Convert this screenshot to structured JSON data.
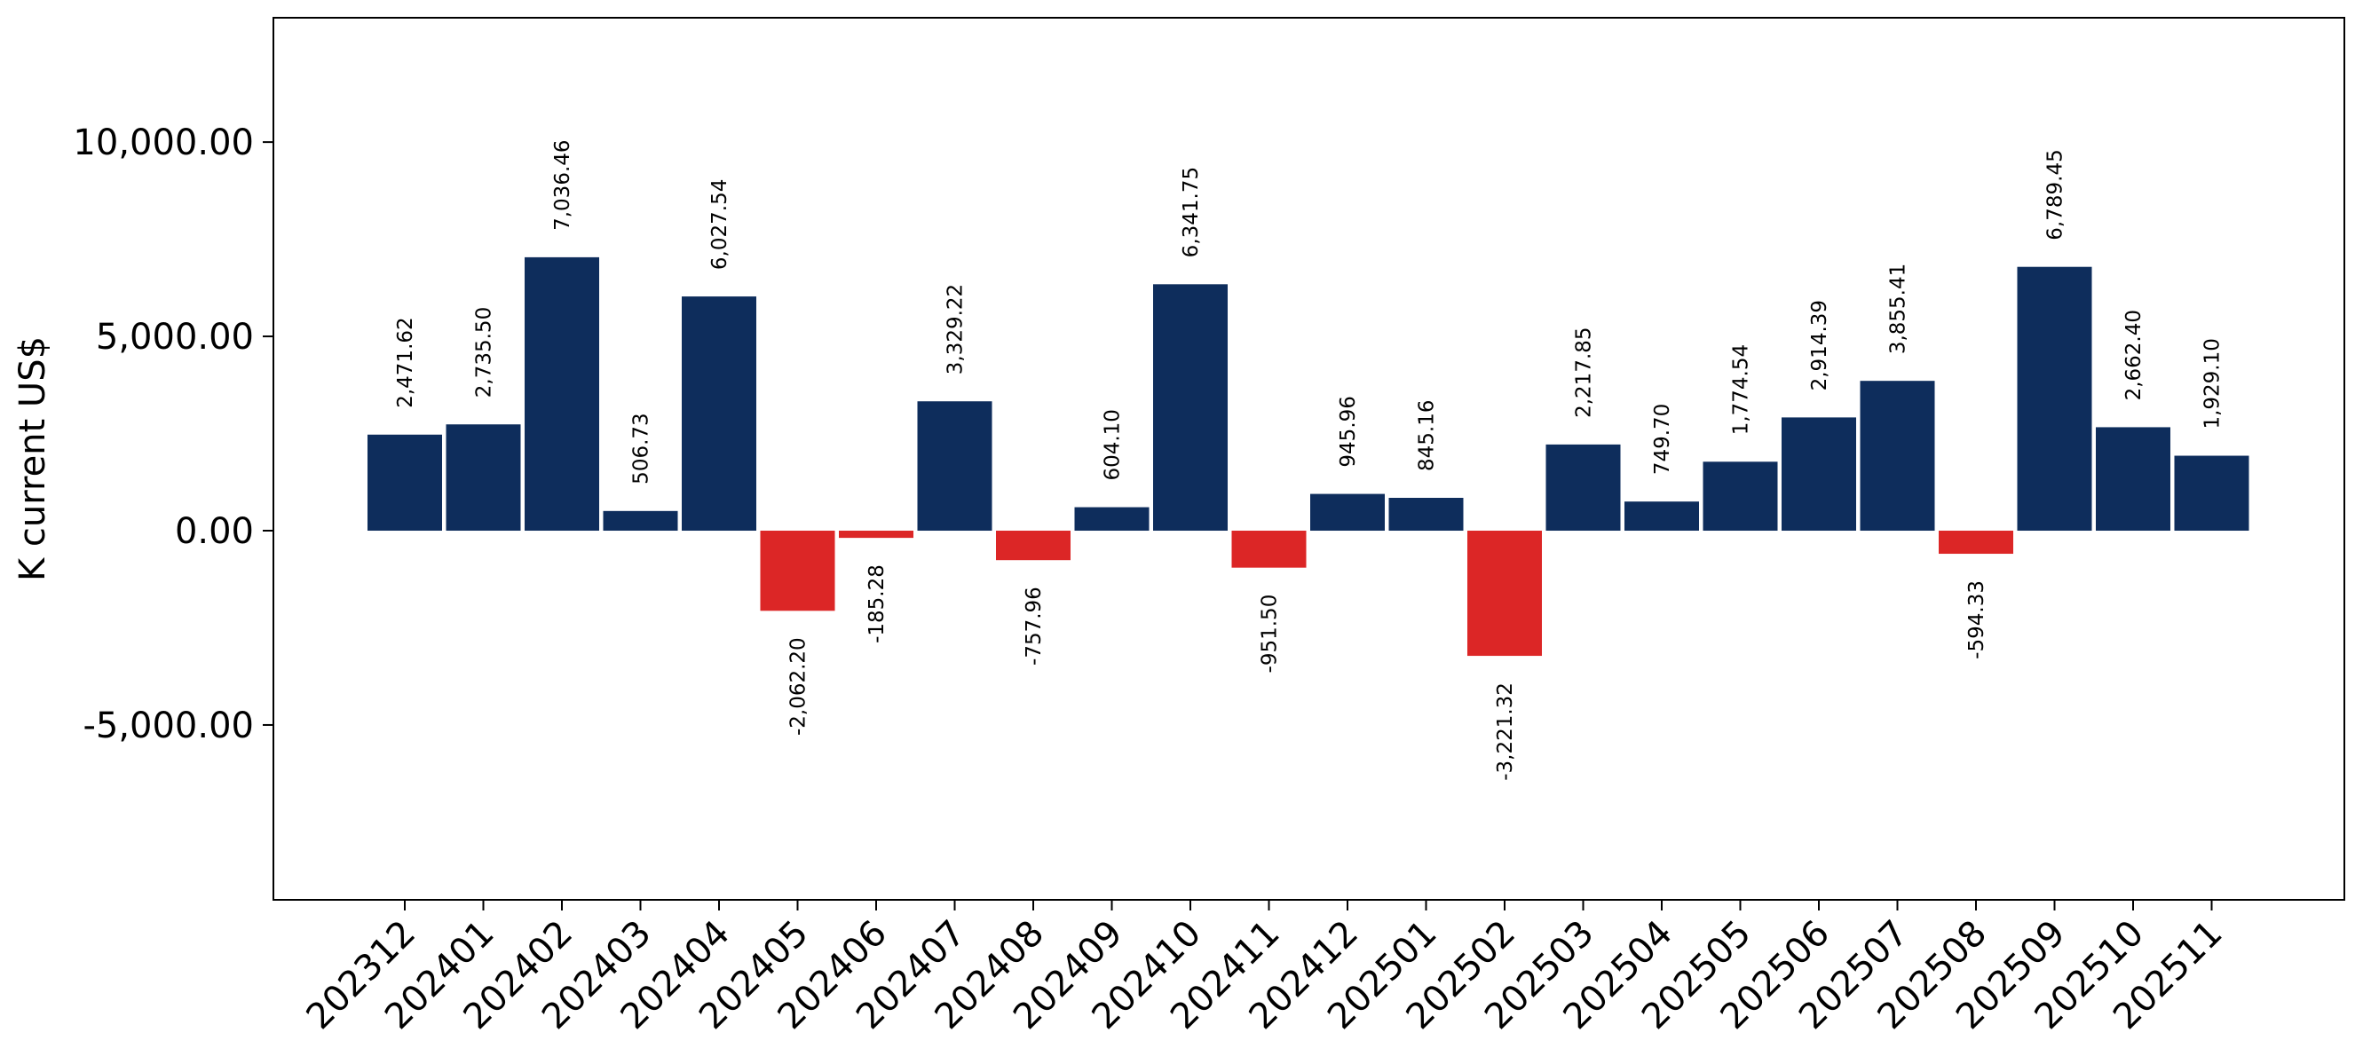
{
  "chart_data": {
    "type": "bar",
    "title": "",
    "xlabel": "",
    "ylabel": "K current US$",
    "ylim": [
      -9500,
      13200
    ],
    "yticks": [
      -5000,
      0,
      5000,
      10000
    ],
    "ytick_labels": [
      "-5,000.00",
      "0.00",
      "5,000.00",
      "10,000.00"
    ],
    "grid": false,
    "legend": "none",
    "categories": [
      "202312",
      "202401",
      "202402",
      "202403",
      "202404",
      "202405",
      "202406",
      "202407",
      "202408",
      "202409",
      "202410",
      "202411",
      "202412",
      "202501",
      "202502",
      "202503",
      "202504",
      "202505",
      "202506",
      "202507",
      "202508",
      "202509",
      "202510",
      "202511"
    ],
    "values": [
      2471.62,
      2735.5,
      7036.46,
      506.73,
      6027.54,
      -2062.2,
      -185.28,
      3329.22,
      -757.96,
      604.1,
      6341.75,
      -951.5,
      945.96,
      845.16,
      -3221.32,
      2217.85,
      749.7,
      1774.54,
      2914.39,
      3855.41,
      -594.33,
      6789.45,
      2662.4,
      1929.1
    ],
    "value_labels": [
      "2,471.62",
      "2,735.50",
      "7,036.46",
      "506.73",
      "6,027.54",
      "-2,062.20",
      "-185.28",
      "3,329.22",
      "-757.96",
      "604.10",
      "6,341.75",
      "-951.50",
      "945.96",
      "845.16",
      "-3,221.32",
      "2,217.85",
      "749.70",
      "1,774.54",
      "2,914.39",
      "3,855.41",
      "-594.33",
      "6,789.45",
      "2,662.40",
      "1,929.10"
    ],
    "colors": {
      "positive": "#0e2d5c",
      "negative": "#dc2626",
      "axis": "#000000"
    }
  }
}
